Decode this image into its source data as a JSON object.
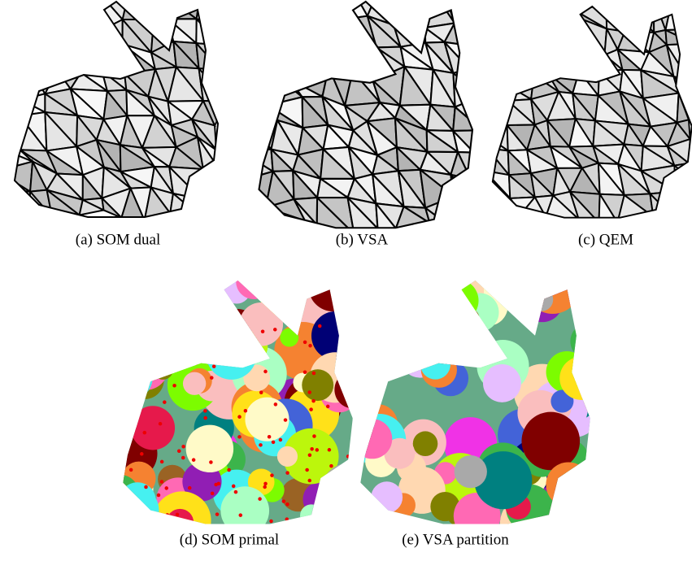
{
  "panels": [
    {
      "caption": "(a) SOM dual"
    },
    {
      "caption": "(b) VSA"
    },
    {
      "caption": "(c) QEM"
    },
    {
      "caption": "(d) SOM primal"
    },
    {
      "caption": "(e) VSA partition"
    }
  ]
}
